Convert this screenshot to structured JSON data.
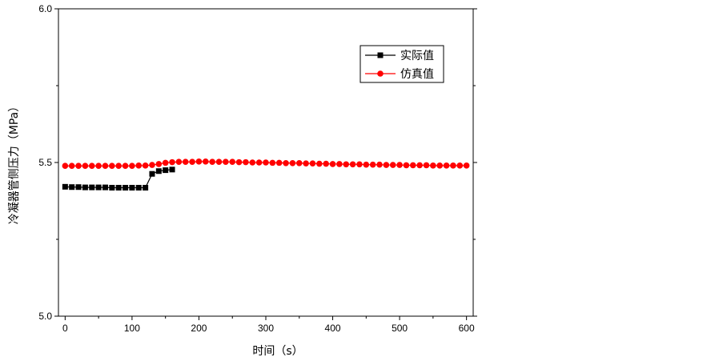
{
  "chart_data": {
    "type": "line",
    "title": "",
    "xlabel": "时间（s）",
    "ylabel": "冷凝器管侧压力（MPa）",
    "xlim": [
      -10,
      610
    ],
    "ylim": [
      5.0,
      6.0
    ],
    "xticks": [
      0,
      100,
      200,
      300,
      400,
      500,
      600
    ],
    "xtick_labels": [
      "0",
      "100",
      "200",
      "300",
      "400",
      "500",
      "600"
    ],
    "yticks": [
      5.0,
      5.5,
      6.0
    ],
    "ytick_labels": [
      "5.0",
      "5.5",
      "6.0"
    ],
    "grid": false,
    "legend_position": "top-right",
    "series": [
      {
        "name": "实际值",
        "color": "#000000",
        "marker": "square",
        "x": [
          0,
          10,
          20,
          30,
          40,
          50,
          60,
          70,
          80,
          90,
          100,
          110,
          120,
          130,
          140,
          150,
          160
        ],
        "y": [
          5.421,
          5.42,
          5.42,
          5.419,
          5.419,
          5.419,
          5.419,
          5.418,
          5.418,
          5.418,
          5.418,
          5.418,
          5.418,
          5.463,
          5.472,
          5.475,
          5.477
        ]
      },
      {
        "name": "仿真值",
        "color": "#ff0000",
        "marker": "circle",
        "x": [
          0,
          10,
          20,
          30,
          40,
          50,
          60,
          70,
          80,
          90,
          100,
          110,
          120,
          130,
          140,
          150,
          160,
          170,
          180,
          190,
          200,
          210,
          220,
          230,
          240,
          250,
          260,
          270,
          280,
          290,
          300,
          310,
          320,
          330,
          340,
          350,
          360,
          370,
          380,
          390,
          400,
          410,
          420,
          430,
          440,
          450,
          460,
          470,
          480,
          490,
          500,
          510,
          520,
          530,
          540,
          550,
          560,
          570,
          580,
          590,
          600
        ],
        "y": [
          5.489,
          5.489,
          5.489,
          5.489,
          5.489,
          5.489,
          5.489,
          5.489,
          5.489,
          5.489,
          5.489,
          5.49,
          5.49,
          5.492,
          5.495,
          5.499,
          5.501,
          5.502,
          5.502,
          5.502,
          5.503,
          5.503,
          5.502,
          5.502,
          5.502,
          5.502,
          5.501,
          5.501,
          5.5,
          5.5,
          5.5,
          5.499,
          5.499,
          5.498,
          5.498,
          5.498,
          5.497,
          5.497,
          5.496,
          5.496,
          5.495,
          5.495,
          5.494,
          5.494,
          5.494,
          5.493,
          5.493,
          5.493,
          5.492,
          5.492,
          5.492,
          5.491,
          5.491,
          5.491,
          5.491,
          5.49,
          5.49,
          5.49,
          5.49,
          5.49,
          5.49
        ]
      }
    ]
  }
}
